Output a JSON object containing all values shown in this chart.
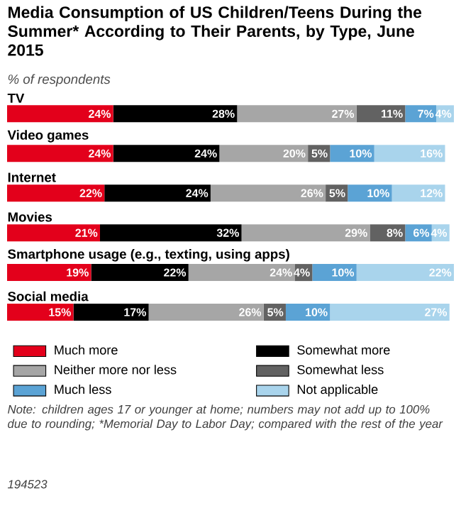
{
  "chart_data": {
    "type": "bar",
    "orientation": "horizontal",
    "stacked": true,
    "data_labels": true,
    "legend": "bottom",
    "title": "Media Consumption of US Children/Teens During the Summer* According to Their Parents, by Type, June 2015",
    "subtitle": "% of respondents",
    "categories": [
      "TV",
      "Video games",
      "Internet",
      "Movies",
      "Smartphone usage (e.g., texting, using apps)",
      "Social media"
    ],
    "series": [
      {
        "name": "Much more",
        "color": "#e3001b",
        "values": [
          24,
          24,
          22,
          21,
          19,
          15
        ],
        "value_labels": [
          "24%",
          "24%",
          "22%",
          "21%",
          "19%",
          "15%"
        ]
      },
      {
        "name": "Somewhat more",
        "color": "#000000",
        "values": [
          28,
          24,
          24,
          32,
          22,
          17
        ],
        "value_labels": [
          "28%",
          "24%",
          "24%",
          "32%",
          "22%",
          "17%"
        ]
      },
      {
        "name": "Neither more nor less",
        "color": "#a6a6a6",
        "values": [
          27,
          20,
          26,
          29,
          24,
          26
        ],
        "value_labels": [
          "27%",
          "20%",
          "26%",
          "29%",
          "24%",
          "26%"
        ]
      },
      {
        "name": "Somewhat less",
        "color": "#626262",
        "values": [
          11,
          5,
          5,
          8,
          4,
          5
        ],
        "value_labels": [
          "11%",
          "5%",
          "5%",
          "8%",
          "4%",
          "5%"
        ]
      },
      {
        "name": "Much less",
        "color": "#5ba3d5",
        "values": [
          7,
          10,
          10,
          6,
          10,
          10
        ],
        "value_labels": [
          "7%",
          "10%",
          "10%",
          "6%",
          "10%",
          "10%"
        ]
      },
      {
        "name": "Not applicable",
        "color": "#a9d4ec",
        "values": [
          4,
          16,
          12,
          4,
          22,
          27
        ],
        "value_labels": [
          "4%",
          "16%",
          "12%",
          "4%",
          "22%",
          "27%"
        ]
      }
    ],
    "annotations": [
      "Note: children ages 17 or younger at home; numbers may not add up to 100% due to rounding; *Memorial Day to Labor Day; compared with the rest of the year",
      "194523"
    ]
  }
}
